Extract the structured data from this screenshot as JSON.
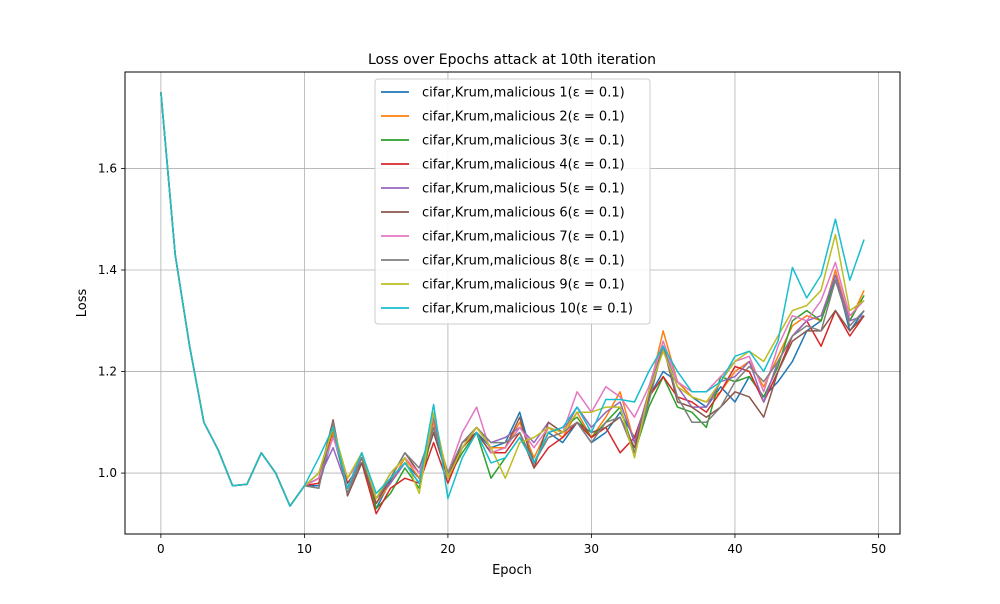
{
  "chart_data": {
    "type": "line",
    "title": "Loss over Epochs attack at 10th iteration",
    "xlabel": "Epoch",
    "ylabel": "Loss",
    "xlim": [
      -2.5,
      51.5
    ],
    "ylim": [
      0.88,
      1.79
    ],
    "xticks": [
      0,
      10,
      20,
      30,
      40,
      50
    ],
    "yticks": [
      1.0,
      1.2,
      1.4,
      1.6
    ],
    "grid": true,
    "legend_placement": "upper-center",
    "x": [
      0,
      1,
      2,
      3,
      4,
      5,
      6,
      7,
      8,
      9,
      10,
      11,
      12,
      13,
      14,
      15,
      16,
      17,
      18,
      19,
      20,
      21,
      22,
      23,
      24,
      25,
      26,
      27,
      28,
      29,
      30,
      31,
      32,
      33,
      34,
      35,
      36,
      37,
      38,
      39,
      40,
      41,
      42,
      43,
      44,
      45,
      46,
      47,
      48,
      49
    ],
    "series": [
      {
        "name": "cifar,Krum,malicious 1(ε = 0.1)",
        "color": "#1f77b4",
        "values": [
          1.75,
          1.43,
          1.25,
          1.1,
          1.045,
          0.975,
          0.978,
          1.04,
          1.0,
          0.935,
          0.975,
          0.975,
          1.075,
          0.97,
          1.04,
          0.93,
          0.985,
          1.02,
          0.99,
          1.08,
          1.0,
          1.05,
          1.08,
          1.05,
          1.06,
          1.12,
          1.02,
          1.08,
          1.06,
          1.1,
          1.06,
          1.08,
          1.12,
          1.07,
          1.15,
          1.2,
          1.18,
          1.15,
          1.13,
          1.17,
          1.14,
          1.19,
          1.15,
          1.18,
          1.22,
          1.28,
          1.3,
          1.39,
          1.28,
          1.32
        ]
      },
      {
        "name": "cifar,Krum,malicious 2(ε = 0.1)",
        "color": "#ff7f0e",
        "values": [
          1.75,
          1.43,
          1.25,
          1.1,
          1.045,
          0.975,
          0.978,
          1.04,
          1.0,
          0.935,
          0.975,
          0.99,
          1.08,
          0.97,
          1.04,
          0.94,
          0.98,
          1.03,
          0.99,
          1.1,
          1.0,
          1.06,
          1.09,
          1.05,
          1.05,
          1.1,
          1.03,
          1.09,
          1.07,
          1.12,
          1.07,
          1.11,
          1.16,
          1.06,
          1.16,
          1.28,
          1.18,
          1.15,
          1.14,
          1.16,
          1.2,
          1.22,
          1.17,
          1.23,
          1.29,
          1.31,
          1.3,
          1.4,
          1.3,
          1.36
        ]
      },
      {
        "name": "cifar,Krum,malicious 3(ε = 0.1)",
        "color": "#2ca02c",
        "values": [
          1.75,
          1.43,
          1.25,
          1.1,
          1.045,
          0.975,
          0.978,
          1.04,
          1.0,
          0.935,
          0.975,
          1.0,
          1.09,
          0.96,
          1.03,
          0.93,
          0.96,
          1.01,
          0.97,
          1.09,
          0.99,
          1.04,
          1.08,
          0.99,
          1.03,
          1.07,
          1.02,
          1.08,
          1.09,
          1.11,
          1.07,
          1.1,
          1.13,
          1.04,
          1.13,
          1.19,
          1.13,
          1.12,
          1.09,
          1.19,
          1.18,
          1.19,
          1.15,
          1.21,
          1.3,
          1.32,
          1.3,
          1.38,
          1.3,
          1.35
        ]
      },
      {
        "name": "cifar,Krum,malicious 4(ε = 0.1)",
        "color": "#d62728",
        "values": [
          1.75,
          1.43,
          1.25,
          1.1,
          1.045,
          0.975,
          0.978,
          1.04,
          1.0,
          0.935,
          0.975,
          0.98,
          1.09,
          0.98,
          1.02,
          0.92,
          0.97,
          0.99,
          0.98,
          1.06,
          0.98,
          1.05,
          1.08,
          1.04,
          1.04,
          1.08,
          1.01,
          1.05,
          1.07,
          1.1,
          1.07,
          1.09,
          1.04,
          1.07,
          1.15,
          1.19,
          1.15,
          1.14,
          1.12,
          1.16,
          1.21,
          1.2,
          1.14,
          1.2,
          1.27,
          1.3,
          1.25,
          1.32,
          1.27,
          1.31
        ]
      },
      {
        "name": "cifar,Krum,malicious 5(ε = 0.1)",
        "color": "#9467bd",
        "values": [
          1.75,
          1.43,
          1.25,
          1.1,
          1.045,
          0.975,
          0.978,
          1.04,
          1.0,
          0.935,
          0.975,
          0.99,
          1.05,
          0.97,
          1.03,
          0.95,
          0.98,
          1.02,
          0.98,
          1.11,
          0.99,
          1.05,
          1.09,
          1.06,
          1.07,
          1.09,
          1.06,
          1.1,
          1.08,
          1.13,
          1.09,
          1.12,
          1.14,
          1.06,
          1.16,
          1.25,
          1.17,
          1.13,
          1.13,
          1.18,
          1.19,
          1.22,
          1.14,
          1.22,
          1.27,
          1.3,
          1.31,
          1.39,
          1.3,
          1.31
        ]
      },
      {
        "name": "cifar,Krum,malicious 6(ε = 0.1)",
        "color": "#8c564b",
        "values": [
          1.75,
          1.43,
          1.25,
          1.1,
          1.045,
          0.975,
          0.978,
          1.04,
          1.0,
          0.935,
          0.975,
          0.99,
          1.105,
          0.955,
          1.02,
          0.94,
          0.99,
          1.04,
          1.0,
          1.08,
          0.99,
          1.06,
          1.08,
          1.04,
          1.05,
          1.11,
          1.01,
          1.1,
          1.08,
          1.1,
          1.08,
          1.09,
          1.11,
          1.05,
          1.15,
          1.25,
          1.14,
          1.13,
          1.11,
          1.13,
          1.16,
          1.15,
          1.11,
          1.2,
          1.26,
          1.28,
          1.28,
          1.32,
          1.28,
          1.31
        ]
      },
      {
        "name": "cifar,Krum,malicious 7(ε = 0.1)",
        "color": "#e377c2",
        "values": [
          1.75,
          1.43,
          1.25,
          1.1,
          1.045,
          0.975,
          0.978,
          1.04,
          1.0,
          0.935,
          0.975,
          0.99,
          1.07,
          0.99,
          1.03,
          0.95,
          1.0,
          1.03,
          1.0,
          1.09,
          1.0,
          1.08,
          1.13,
          1.04,
          1.05,
          1.09,
          1.05,
          1.09,
          1.08,
          1.16,
          1.12,
          1.17,
          1.15,
          1.11,
          1.17,
          1.26,
          1.18,
          1.16,
          1.16,
          1.19,
          1.22,
          1.23,
          1.16,
          1.25,
          1.31,
          1.3,
          1.34,
          1.415,
          1.31,
          1.34
        ]
      },
      {
        "name": "cifar,Krum,malicious 8(ε = 0.1)",
        "color": "#7f7f7f",
        "values": [
          1.75,
          1.43,
          1.25,
          1.1,
          1.045,
          0.975,
          0.978,
          1.04,
          1.0,
          0.935,
          0.975,
          0.97,
          1.1,
          0.96,
          1.03,
          0.95,
          0.99,
          1.04,
          1.01,
          1.09,
          1.0,
          1.06,
          1.09,
          1.06,
          1.06,
          1.08,
          1.02,
          1.07,
          1.08,
          1.1,
          1.06,
          1.1,
          1.11,
          1.04,
          1.14,
          1.25,
          1.15,
          1.1,
          1.1,
          1.13,
          1.18,
          1.21,
          1.18,
          1.22,
          1.27,
          1.29,
          1.28,
          1.38,
          1.29,
          1.32
        ]
      },
      {
        "name": "cifar,Krum,malicious 9(ε = 0.1)",
        "color": "#bcbd22",
        "values": [
          1.75,
          1.43,
          1.25,
          1.1,
          1.045,
          0.975,
          0.978,
          1.04,
          1.0,
          0.935,
          0.975,
          1.0,
          1.09,
          0.99,
          1.04,
          0.95,
          1.0,
          1.03,
          0.96,
          1.12,
          0.99,
          1.05,
          1.09,
          1.05,
          0.99,
          1.06,
          1.07,
          1.09,
          1.08,
          1.12,
          1.12,
          1.13,
          1.13,
          1.03,
          1.16,
          1.24,
          1.17,
          1.15,
          1.14,
          1.18,
          1.22,
          1.24,
          1.22,
          1.27,
          1.32,
          1.33,
          1.36,
          1.47,
          1.32,
          1.34
        ]
      },
      {
        "name": "cifar,Krum,malicious 10(ε = 0.1)",
        "color": "#17becf",
        "values": [
          1.75,
          1.43,
          1.25,
          1.1,
          1.045,
          0.975,
          0.978,
          1.04,
          1.0,
          0.935,
          0.975,
          1.03,
          1.09,
          0.97,
          1.04,
          0.96,
          0.99,
          1.02,
          0.98,
          1.135,
          0.95,
          1.03,
          1.08,
          1.02,
          1.03,
          1.07,
          1.02,
          1.08,
          1.09,
          1.13,
          1.08,
          1.145,
          1.145,
          1.14,
          1.2,
          1.25,
          1.2,
          1.16,
          1.16,
          1.18,
          1.23,
          1.24,
          1.2,
          1.26,
          1.405,
          1.345,
          1.39,
          1.5,
          1.38,
          1.46
        ]
      }
    ]
  }
}
